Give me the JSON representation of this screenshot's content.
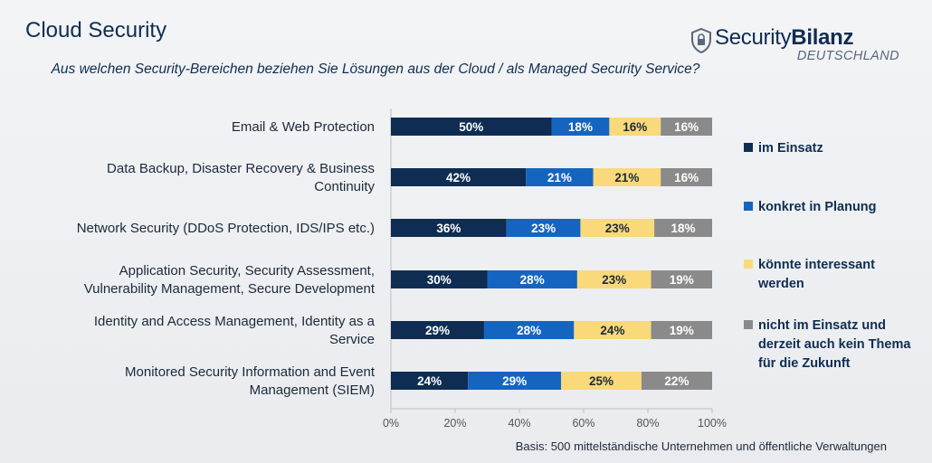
{
  "header": {
    "title": "Cloud Security",
    "subtitle": "Aus welchen Security-Bereichen beziehen Sie Lösungen aus der Cloud / als Managed Security Service?"
  },
  "logo": {
    "brand_light": "Security",
    "brand_bold": "Bilanz",
    "sub": "DEUTSCHLAND",
    "icon": "shield-lock-icon"
  },
  "footnote": "Basis: 500 mittelständische Unternehmen und öffentliche Verwaltungen",
  "chart_data": {
    "type": "bar",
    "orientation": "horizontal",
    "stacked": true,
    "categories": [
      [
        "Email & Web Protection"
      ],
      [
        "Data Backup, Disaster Recovery & Business",
        "Continuity"
      ],
      [
        "Network Security (DDoS Protection, IDS/IPS etc.)"
      ],
      [
        "Application Security, Security Assessment,",
        "Vulnerability Management, Secure Development"
      ],
      [
        "Identity and Access Management, Identity as a",
        "Service"
      ],
      [
        "Monitored Security Information and Event",
        "Management (SIEM)"
      ]
    ],
    "series": [
      {
        "name": "im Einsatz",
        "color": "#0f2d52",
        "label_color": "#ffffff",
        "values": [
          50,
          42,
          36,
          30,
          29,
          24
        ]
      },
      {
        "name": "konkret in Planung",
        "color": "#1565c0",
        "label_color": "#ffffff",
        "values": [
          18,
          21,
          23,
          28,
          28,
          29
        ]
      },
      {
        "name": "könnte interessant werden",
        "color": "#fad97a",
        "label_color": "#1b2a3a",
        "values": [
          16,
          21,
          23,
          23,
          24,
          25
        ]
      },
      {
        "name": "nicht im Einsatz und derzeit auch kein Thema für die Zukunft",
        "color": "#8a8a8a",
        "label_color": "#ffffff",
        "values": [
          16,
          16,
          18,
          19,
          19,
          22
        ]
      }
    ],
    "legend_lines": [
      [
        "im Einsatz"
      ],
      [
        "konkret in Planung"
      ],
      [
        "könnte interessant",
        "werden"
      ],
      [
        "nicht im Einsatz und",
        "derzeit auch kein Thema",
        "für die Zukunft"
      ]
    ],
    "xticks": [
      "0%",
      "20%",
      "40%",
      "60%",
      "80%",
      "100%"
    ],
    "xlim": [
      0,
      100
    ],
    "legend_position": "right",
    "grid": false
  }
}
